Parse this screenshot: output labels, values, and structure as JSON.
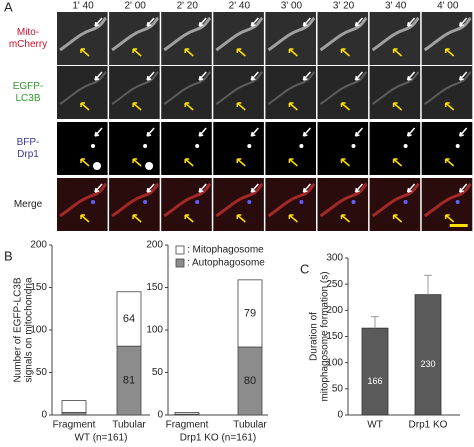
{
  "panel_a": {
    "letter": "A",
    "times": [
      "1' 40",
      "2' 00",
      "2' 20",
      "2' 40",
      "3' 00",
      "3' 20",
      "3' 40",
      "4' 00"
    ],
    "rows": [
      {
        "lines": [
          "Mito-",
          "mCherry"
        ],
        "color": "#c8102e"
      },
      {
        "lines": [
          "EGFP-",
          "LC3B"
        ],
        "color": "#2e9b2e"
      },
      {
        "lines": [
          "BFP-",
          "Drp1"
        ],
        "color": "#3a3a9a"
      },
      {
        "lines": [
          "Merge"
        ],
        "color": "#222222"
      }
    ]
  },
  "chart_data": [
    {
      "type": "bar",
      "letter": "B",
      "stacked": true,
      "ylabel": [
        "Number of EGFP-LC3B",
        "signals on mitochondria"
      ],
      "xlabel": "WT (n=161)",
      "categories": [
        "Fragment",
        "Tubular"
      ],
      "series": [
        {
          "name": ": Autophagosome",
          "color": "#8c8c8c",
          "values": [
            3,
            81
          ],
          "value_labels": [
            null,
            "81"
          ]
        },
        {
          "name": ": Mitophagosome",
          "color": "#ffffff",
          "values": [
            14,
            64
          ],
          "value_labels": [
            null,
            "64"
          ]
        }
      ],
      "ylim": [
        0,
        200
      ],
      "yticks": [
        0,
        50,
        100,
        150,
        200
      ]
    },
    {
      "type": "bar",
      "stacked": true,
      "xlabel": "Drp1 KO (n=161)",
      "categories": [
        "Fragment",
        "Tubular"
      ],
      "legend": "top-left",
      "series": [
        {
          "name": ": Autophagosome",
          "color": "#8c8c8c",
          "values": [
            1,
            80
          ],
          "value_labels": [
            null,
            "80"
          ]
        },
        {
          "name": ": Mitophagosome",
          "color": "#ffffff",
          "values": [
            2,
            79
          ],
          "value_labels": [
            null,
            "79"
          ]
        }
      ],
      "ylim": [
        0,
        200
      ],
      "yticks": [
        0,
        50,
        100,
        150,
        200
      ]
    },
    {
      "type": "bar",
      "letter": "C",
      "ylabel": [
        "Duration of",
        "mitophagosome formation (s)"
      ],
      "categories": [
        "WT",
        "Drp1 KO"
      ],
      "values": [
        166,
        230
      ],
      "errors": [
        22,
        37
      ],
      "color": "#5a5a5a",
      "ylim": [
        0,
        300
      ],
      "yticks": [
        0,
        50,
        100,
        150,
        200,
        250,
        300
      ]
    }
  ]
}
